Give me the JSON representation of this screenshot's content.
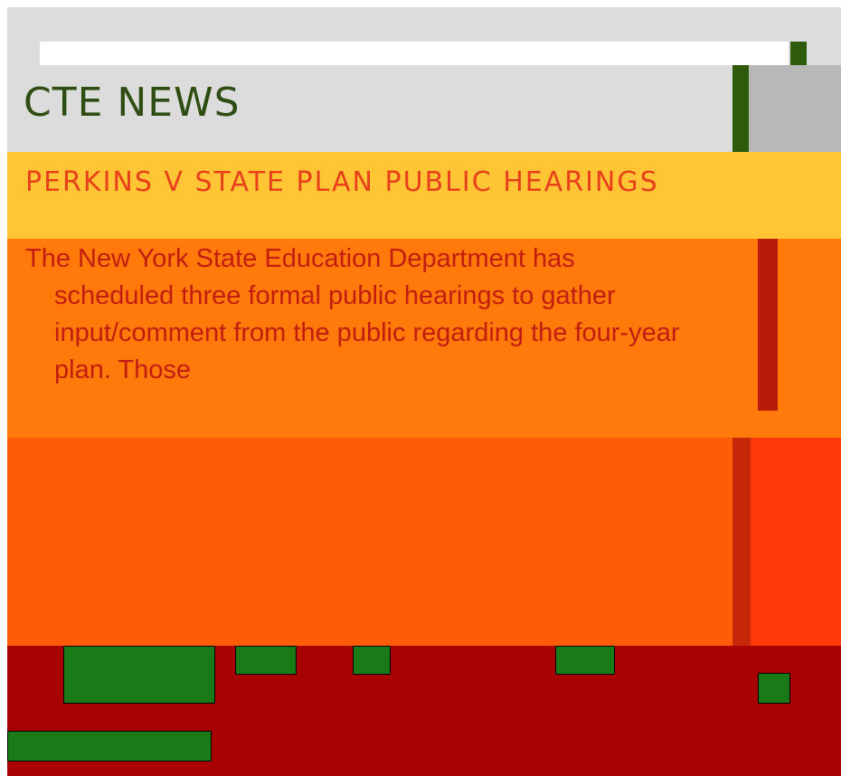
{
  "header": {
    "title": "CTE NEWS"
  },
  "article": {
    "title": "PERKINS V STATE PLAN PUBLIC HEARINGS",
    "body": "The New York State Education Department has scheduled three formal public hearings to gather input/comment from the public regarding the four-year plan. Those"
  }
}
